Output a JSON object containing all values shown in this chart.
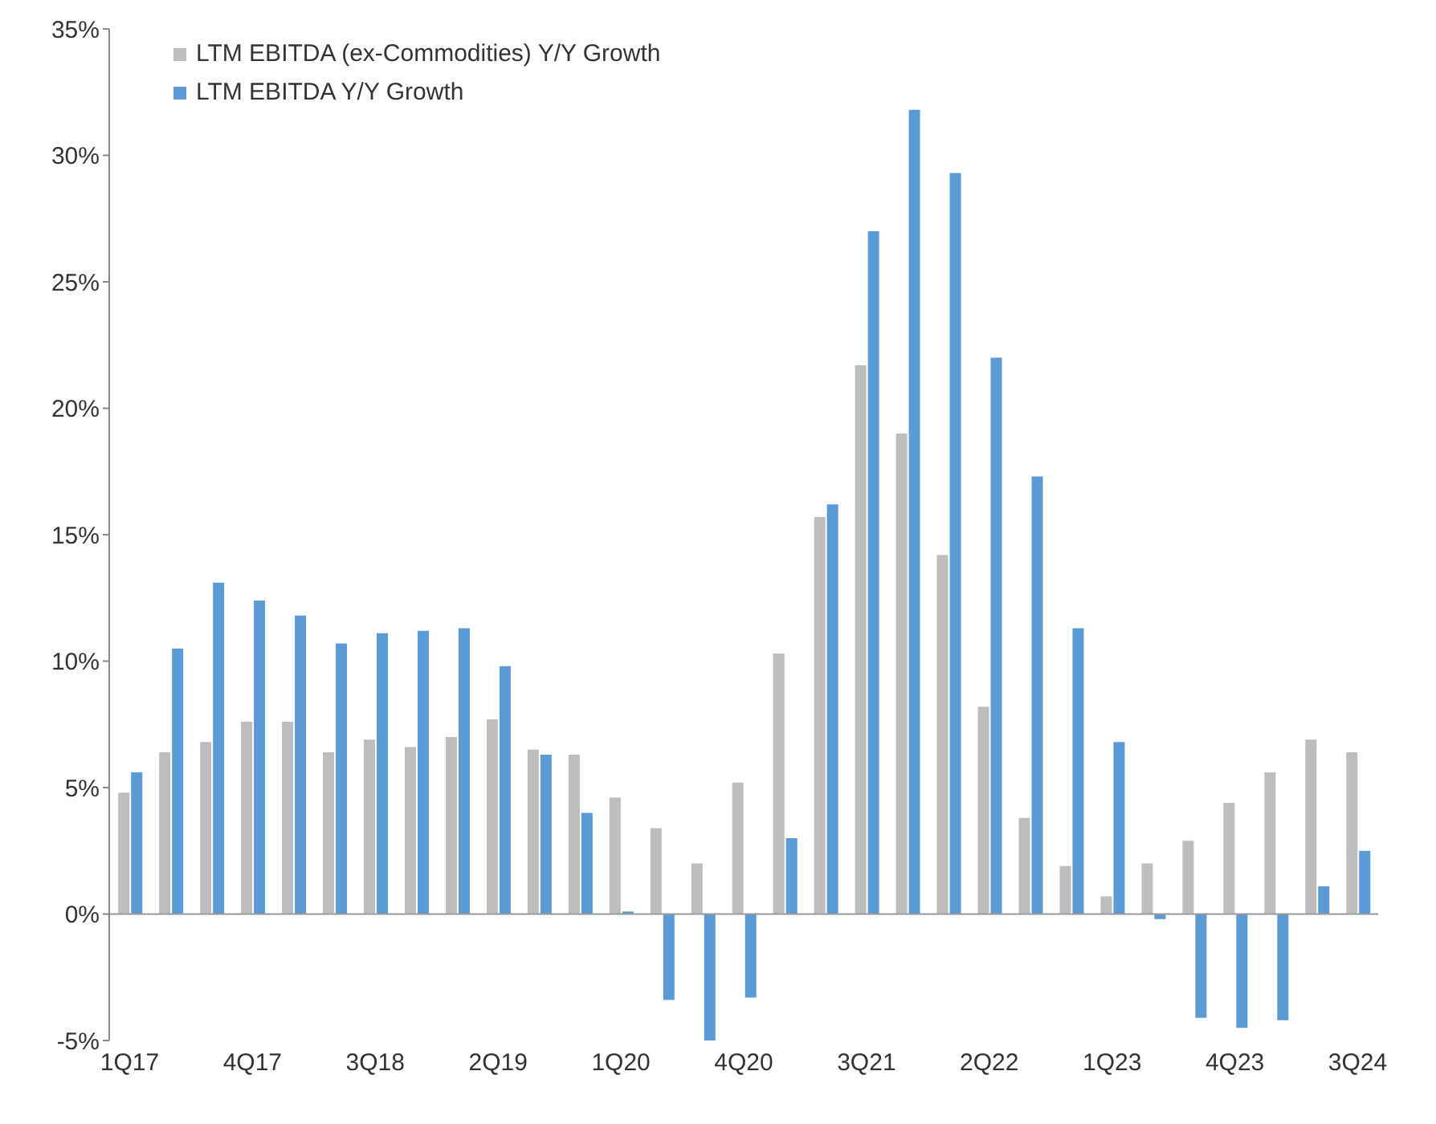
{
  "chart_data": {
    "type": "bar",
    "categories": [
      "1Q17",
      null,
      null,
      "4Q17",
      null,
      null,
      "3Q18",
      null,
      null,
      "2Q19",
      null,
      null,
      "1Q20",
      null,
      null,
      "4Q20",
      null,
      null,
      "3Q21",
      null,
      null,
      "2Q22",
      null,
      null,
      "1Q23",
      null,
      null,
      "4Q23",
      null,
      null,
      "3Q24"
    ],
    "series": [
      {
        "name": "LTM EBITDA (ex-Commodities) Y/Y Growth",
        "color": "#bdbdbd",
        "values": [
          4.8,
          6.4,
          6.8,
          7.6,
          7.6,
          6.4,
          6.9,
          6.6,
          7.0,
          7.7,
          6.5,
          6.3,
          4.6,
          3.4,
          2.0,
          5.2,
          10.3,
          15.7,
          21.7,
          19.0,
          14.2,
          8.2,
          3.8,
          1.9,
          0.7,
          2.0,
          2.9,
          4.4,
          5.6,
          6.9,
          6.4
        ]
      },
      {
        "name": "LTM EBITDA Y/Y Growth",
        "color": "#5b9bd5",
        "values": [
          5.6,
          10.5,
          13.1,
          12.4,
          11.8,
          10.7,
          11.1,
          11.2,
          11.3,
          9.8,
          6.3,
          4.0,
          0.1,
          -3.4,
          -5.0,
          -3.3,
          3.0,
          16.2,
          27.0,
          31.8,
          29.3,
          22.0,
          17.3,
          11.3,
          6.8,
          -0.2,
          -4.1,
          -4.5,
          -4.2,
          1.1,
          2.5
        ]
      }
    ],
    "ylim": [
      -5,
      35
    ],
    "yticks": [
      {
        "value": -5,
        "label": "-5%"
      },
      {
        "value": 0,
        "label": "0%"
      },
      {
        "value": 5,
        "label": "5%"
      },
      {
        "value": 10,
        "label": "10%"
      },
      {
        "value": 15,
        "label": "15%"
      },
      {
        "value": 20,
        "label": "20%"
      },
      {
        "value": 25,
        "label": "25%"
      },
      {
        "value": 30,
        "label": "30%"
      },
      {
        "value": 35,
        "label": "35%"
      }
    ],
    "grid": false,
    "ref_lines": [
      {
        "axis": "y",
        "value": 0,
        "color": "#999999"
      }
    ],
    "legend": "top left"
  }
}
